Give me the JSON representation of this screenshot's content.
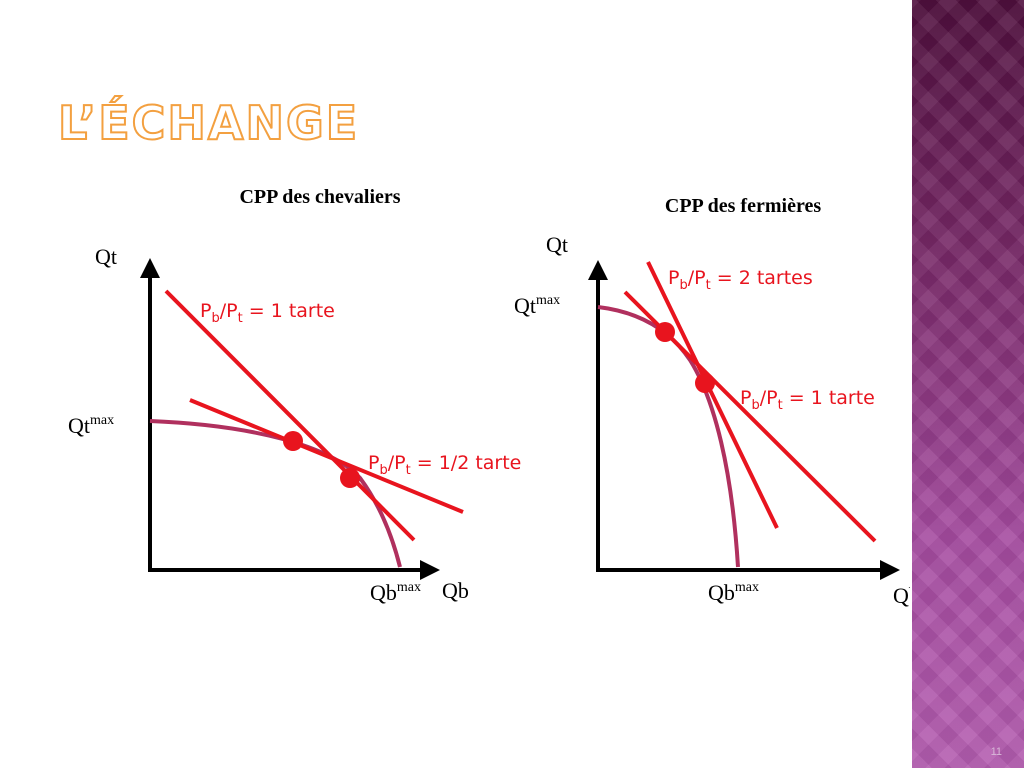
{
  "slide": {
    "title": "L’ÉCHANGE",
    "page_number": "11"
  },
  "colors": {
    "curve": "#b0305e",
    "price_line": "#e8141e",
    "axis": "#000000",
    "title_outline": "#f3a040"
  },
  "left_panel": {
    "heading": "CPP des chevaliers",
    "y_axis_label": "Qt",
    "x_axis_label": "Qb",
    "y_max_label": "Qt",
    "y_max_sup": "max",
    "x_max_label": "Qb",
    "x_max_sup": "max",
    "price_lines": [
      {
        "p": "P",
        "b": "b",
        "mid": "/P",
        "t": "t",
        "rest": " = 1 tarte"
      },
      {
        "p": "P",
        "b": "b",
        "mid": "/P",
        "t": "t",
        "rest": " = 1/2 tarte"
      }
    ]
  },
  "right_panel": {
    "heading": "CPP des fermières",
    "y_axis_label": "Qt",
    "x_axis_label": "Qb",
    "y_max_label": "Qt",
    "y_max_sup": "max",
    "x_max_label": "Qb",
    "x_max_sup": "max",
    "price_lines": [
      {
        "p": "P",
        "b": "b",
        "mid": "/P",
        "t": "t",
        "rest": " = 2 tartes"
      },
      {
        "p": "P",
        "b": "b",
        "mid": "/P",
        "t": "t",
        "rest": " = 1 tarte"
      }
    ]
  }
}
